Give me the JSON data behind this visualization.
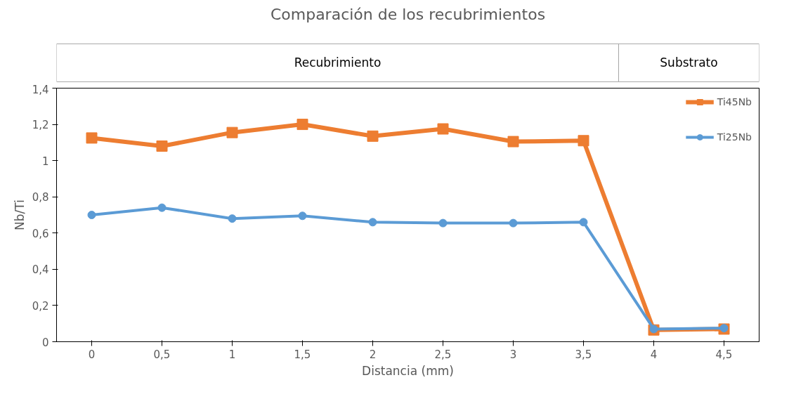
{
  "chart_data": {
    "type": "line",
    "title": "Comparación de los recubrimientos",
    "xlabel": "Distancia (mm)",
    "ylabel": "Nb/Ti",
    "categories": [
      "0",
      "0,5",
      "1",
      "1,5",
      "2",
      "2,5",
      "3",
      "3,5",
      "4",
      "4,5"
    ],
    "series": [
      {
        "name": "Ti45Nb",
        "color": "#ed7d31",
        "marker": "square",
        "values": [
          1.125,
          1.08,
          1.155,
          1.2,
          1.135,
          1.175,
          1.105,
          1.11,
          0.065,
          0.07
        ]
      },
      {
        "name": "Ti25Nb",
        "color": "#5b9bd5",
        "marker": "circle",
        "values": [
          0.7,
          0.74,
          0.68,
          0.695,
          0.66,
          0.655,
          0.655,
          0.66,
          0.07,
          0.075
        ]
      }
    ],
    "ylim": [
      0,
      1.4
    ],
    "yticks": [
      {
        "value": 0,
        "label": "0"
      },
      {
        "value": 0.2,
        "label": "0,2"
      },
      {
        "value": 0.4,
        "label": "0,4"
      },
      {
        "value": 0.6,
        "label": "0,6"
      },
      {
        "value": 0.8,
        "label": "0,8"
      },
      {
        "value": 1,
        "label": "1"
      },
      {
        "value": 1.2,
        "label": "1,2"
      },
      {
        "value": 1.4,
        "label": "1,4"
      }
    ],
    "annotations": [
      "Recubrimiento",
      "Substrato"
    ],
    "grid": false,
    "legend": "top right",
    "line_style": "solid"
  }
}
